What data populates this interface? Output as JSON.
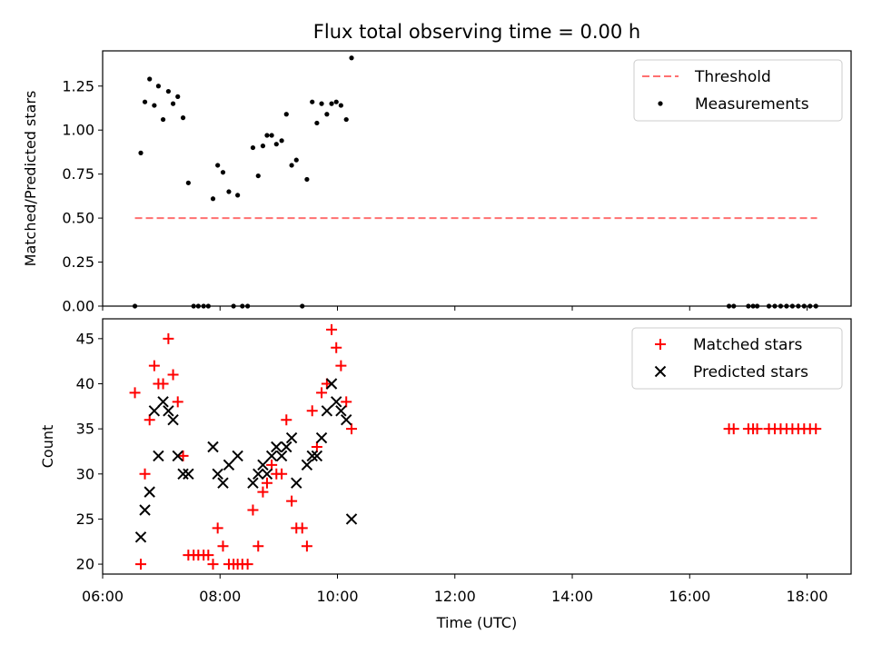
{
  "chart_data": [
    {
      "type": "scatter",
      "title": "Flux total observing time = 0.00 h",
      "xlabel": "",
      "ylabel": "Matched/Predicted stars",
      "xlim_hours": [
        6.0,
        18.75
      ],
      "ylim": [
        0,
        1.45
      ],
      "yticks": [
        0,
        0.25,
        0.5,
        0.75,
        1.0,
        1.25
      ],
      "ytick_labels": [
        "0.00",
        "0.25",
        "0.50",
        "0.75",
        "1.00",
        "1.25"
      ],
      "xticks_hours": [
        6,
        8,
        10,
        12,
        14,
        16,
        18
      ],
      "legend_position": "upper right",
      "threshold": {
        "name": "Threshold",
        "value": 0.5,
        "x_range_hours": [
          6.55,
          18.17
        ],
        "color": "#ff7070"
      },
      "series": [
        {
          "name": "Measurements",
          "color": "#000000",
          "points": [
            [
              6.55,
              0.0
            ],
            [
              6.65,
              0.87
            ],
            [
              6.72,
              1.16
            ],
            [
              6.8,
              1.29
            ],
            [
              6.88,
              1.14
            ],
            [
              6.95,
              1.25
            ],
            [
              7.03,
              1.06
            ],
            [
              7.12,
              1.22
            ],
            [
              7.2,
              1.15
            ],
            [
              7.28,
              1.19
            ],
            [
              7.37,
              1.07
            ],
            [
              7.46,
              0.7
            ],
            [
              7.55,
              0.0
            ],
            [
              7.63,
              0.0
            ],
            [
              7.72,
              0.0
            ],
            [
              7.8,
              0.0
            ],
            [
              7.88,
              0.61
            ],
            [
              7.96,
              0.8
            ],
            [
              8.05,
              0.76
            ],
            [
              8.15,
              0.65
            ],
            [
              8.23,
              0.0
            ],
            [
              8.3,
              0.63
            ],
            [
              8.38,
              0.0
            ],
            [
              8.47,
              0.0
            ],
            [
              8.56,
              0.9
            ],
            [
              8.65,
              0.74
            ],
            [
              8.73,
              0.91
            ],
            [
              8.8,
              0.97
            ],
            [
              8.88,
              0.97
            ],
            [
              8.96,
              0.92
            ],
            [
              9.05,
              0.94
            ],
            [
              9.13,
              1.09
            ],
            [
              9.22,
              0.8
            ],
            [
              9.3,
              0.83
            ],
            [
              9.4,
              0.0
            ],
            [
              9.48,
              0.72
            ],
            [
              9.57,
              1.16
            ],
            [
              9.65,
              1.04
            ],
            [
              9.73,
              1.15
            ],
            [
              9.82,
              1.09
            ],
            [
              9.9,
              1.15
            ],
            [
              9.98,
              1.16
            ],
            [
              10.06,
              1.14
            ],
            [
              10.15,
              1.06
            ],
            [
              10.24,
              1.41
            ],
            [
              16.67,
              0.0
            ],
            [
              16.75,
              0.0
            ],
            [
              17.0,
              0.0
            ],
            [
              17.08,
              0.0
            ],
            [
              17.15,
              0.0
            ],
            [
              17.35,
              0.0
            ],
            [
              17.45,
              0.0
            ],
            [
              17.55,
              0.0
            ],
            [
              17.65,
              0.0
            ],
            [
              17.75,
              0.0
            ],
            [
              17.85,
              0.0
            ],
            [
              17.95,
              0.0
            ],
            [
              18.05,
              0.0
            ],
            [
              18.15,
              0.0
            ]
          ]
        }
      ]
    },
    {
      "type": "scatter",
      "title": "",
      "xlabel": "Time (UTC)",
      "ylabel": "Count",
      "xlim_hours": [
        6.0,
        18.75
      ],
      "ylim": [
        18.9,
        47.2
      ],
      "yticks": [
        20,
        25,
        30,
        35,
        40,
        45
      ],
      "ytick_labels": [
        "20",
        "25",
        "30",
        "35",
        "40",
        "45"
      ],
      "xticks_hours": [
        6,
        8,
        10,
        12,
        14,
        16,
        18
      ],
      "xtick_labels": [
        "06:00",
        "08:00",
        "10:00",
        "12:00",
        "14:00",
        "16:00",
        "18:00"
      ],
      "legend_position": "upper right",
      "series": [
        {
          "name": "Matched stars",
          "marker": "plus",
          "color": "#ff0000",
          "points": [
            [
              6.55,
              39
            ],
            [
              6.65,
              20
            ],
            [
              6.72,
              30
            ],
            [
              6.8,
              36
            ],
            [
              6.88,
              42
            ],
            [
              6.95,
              40
            ],
            [
              7.03,
              40
            ],
            [
              7.12,
              45
            ],
            [
              7.2,
              41
            ],
            [
              7.28,
              38
            ],
            [
              7.37,
              32
            ],
            [
              7.46,
              21
            ],
            [
              7.55,
              21
            ],
            [
              7.63,
              21
            ],
            [
              7.72,
              21
            ],
            [
              7.8,
              21
            ],
            [
              7.88,
              20
            ],
            [
              7.96,
              24
            ],
            [
              8.05,
              22
            ],
            [
              8.15,
              20
            ],
            [
              8.23,
              20
            ],
            [
              8.3,
              20
            ],
            [
              8.38,
              20
            ],
            [
              8.47,
              20
            ],
            [
              8.56,
              26
            ],
            [
              8.65,
              22
            ],
            [
              8.73,
              28
            ],
            [
              8.8,
              29
            ],
            [
              8.88,
              31
            ],
            [
              8.96,
              30
            ],
            [
              9.05,
              30
            ],
            [
              9.13,
              36
            ],
            [
              9.22,
              27
            ],
            [
              9.3,
              24
            ],
            [
              9.4,
              24
            ],
            [
              9.48,
              22
            ],
            [
              9.57,
              37
            ],
            [
              9.65,
              33
            ],
            [
              9.73,
              39
            ],
            [
              9.82,
              40
            ],
            [
              9.9,
              46
            ],
            [
              9.98,
              44
            ],
            [
              10.06,
              42
            ],
            [
              10.15,
              38
            ],
            [
              10.24,
              35
            ],
            [
              16.67,
              35
            ],
            [
              16.75,
              35
            ],
            [
              17.0,
              35
            ],
            [
              17.08,
              35
            ],
            [
              17.15,
              35
            ],
            [
              17.35,
              35
            ],
            [
              17.45,
              35
            ],
            [
              17.55,
              35
            ],
            [
              17.65,
              35
            ],
            [
              17.75,
              35
            ],
            [
              17.85,
              35
            ],
            [
              17.95,
              35
            ],
            [
              18.05,
              35
            ],
            [
              18.15,
              35
            ]
          ]
        },
        {
          "name": "Predicted stars",
          "marker": "x",
          "color": "#000000",
          "points": [
            [
              6.65,
              23
            ],
            [
              6.72,
              26
            ],
            [
              6.8,
              28
            ],
            [
              6.88,
              37
            ],
            [
              6.95,
              32
            ],
            [
              7.03,
              38
            ],
            [
              7.12,
              37
            ],
            [
              7.2,
              36
            ],
            [
              7.28,
              32
            ],
            [
              7.37,
              30
            ],
            [
              7.46,
              30
            ],
            [
              7.88,
              33
            ],
            [
              7.96,
              30
            ],
            [
              8.05,
              29
            ],
            [
              8.15,
              31
            ],
            [
              8.3,
              32
            ],
            [
              8.56,
              29
            ],
            [
              8.65,
              30
            ],
            [
              8.73,
              31
            ],
            [
              8.8,
              30
            ],
            [
              8.88,
              32
            ],
            [
              8.96,
              33
            ],
            [
              9.05,
              32
            ],
            [
              9.13,
              33
            ],
            [
              9.22,
              34
            ],
            [
              9.3,
              29
            ],
            [
              9.48,
              31
            ],
            [
              9.57,
              32
            ],
            [
              9.65,
              32
            ],
            [
              9.73,
              34
            ],
            [
              9.82,
              37
            ],
            [
              9.9,
              40
            ],
            [
              9.98,
              38
            ],
            [
              10.06,
              37
            ],
            [
              10.15,
              36
            ],
            [
              10.24,
              25
            ]
          ]
        }
      ]
    }
  ]
}
